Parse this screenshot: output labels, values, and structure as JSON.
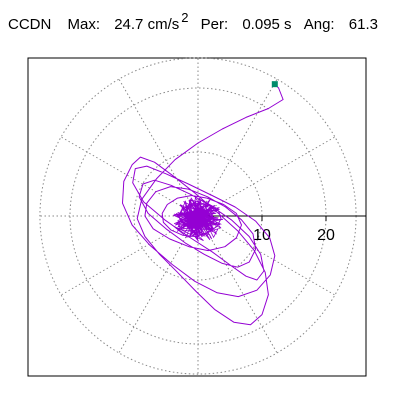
{
  "header": {
    "station": "CCDN",
    "max_label": "Max:",
    "max_value": "24.7",
    "max_unit": "cm/s",
    "max_unit_exp": "2",
    "per_label": "Per:",
    "per_value": "0.095 s",
    "ang_label": "Ang:",
    "ang_value": "61.3"
  },
  "chart_data": {
    "type": "line",
    "title": "",
    "xlabel": "",
    "ylabel": "",
    "xlim": [
      -26,
      26
    ],
    "ylim": [
      -26,
      26
    ],
    "grid": "polar",
    "polar_rings": [
      10,
      20
    ],
    "tick_labels": [
      "10",
      "20"
    ],
    "max_value": 24.7,
    "angle": 61.3,
    "colors": {
      "trace": "#9400d3",
      "marker": "#008b6b",
      "grid": "#888888",
      "axis": "#000000"
    },
    "series": [
      {
        "x": [
          12.0,
          12.6,
          13.3,
          11.0,
          7.5,
          3.8,
          0.0,
          -3.6,
          -6.5,
          -8.8,
          -9.5,
          -8.3,
          -6.0,
          -3.2,
          -0.3,
          2.6,
          5.6,
          8.2,
          10.0,
          11.0,
          10.5,
          8.8,
          6.3,
          3.0,
          -0.5,
          -3.8,
          -6.8,
          -9.0,
          -10.3,
          -11.6,
          -11.8,
          -10.3,
          -7.5,
          -4.0,
          -0.5,
          3.0,
          6.3,
          9.2,
          11.3,
          12.0,
          11.2,
          9.0,
          5.8,
          2.2,
          -1.5,
          -5.0,
          -8.0,
          -9.8,
          -10.2,
          -8.5,
          -5.2,
          -1.5,
          2.2,
          5.2,
          7.5,
          9.2,
          10.3,
          9.8,
          8.0,
          5.2,
          2.0,
          -1.2,
          -4.2,
          -6.8,
          -8.6,
          -9.2,
          -7.8,
          -5.0,
          -2.0,
          1.0,
          3.8,
          6.2,
          8.0,
          9.0,
          8.6,
          6.8,
          4.3,
          1.5,
          -1.5,
          -4.3,
          -6.6,
          -8.0,
          -8.3,
          -7.0,
          -4.4,
          -1.4,
          1.6,
          4.2,
          6.0,
          6.8,
          6.0,
          4.0,
          1.4,
          -1.0,
          -3.2,
          -4.8,
          -5.6,
          -5.4,
          -4.2,
          -2.4,
          -0.4,
          1.6,
          3.0,
          3.6,
          3.2,
          2.0,
          0.4,
          -1.2,
          -2.4,
          -3.0,
          -2.6,
          -1.6,
          -0.4,
          0.8,
          1.6,
          1.8,
          1.2,
          0.2,
          -0.8,
          -1.4,
          -1.2,
          -0.4,
          0.4,
          0.8,
          0.4,
          -0.2,
          -0.6,
          -0.2,
          0.3,
          0.1
        ],
        "y": [
          20.6,
          20.0,
          18.2,
          16.8,
          15.4,
          13.6,
          11.4,
          8.8,
          5.8,
          2.6,
          -0.4,
          -3.2,
          -6.0,
          -8.8,
          -11.8,
          -14.6,
          -16.6,
          -17.0,
          -15.4,
          -12.3,
          -8.8,
          -5.4,
          -2.4,
          0.6,
          3.6,
          6.2,
          8.4,
          9.2,
          8.0,
          5.4,
          2.0,
          -1.4,
          -4.6,
          -7.6,
          -10.2,
          -12.0,
          -12.6,
          -11.6,
          -9.2,
          -6.2,
          -3.4,
          -0.8,
          1.4,
          3.2,
          5.0,
          6.6,
          7.8,
          7.4,
          5.2,
          2.2,
          -0.6,
          -3.2,
          -5.6,
          -7.8,
          -9.4,
          -10.0,
          -8.6,
          -6.0,
          -3.2,
          -0.6,
          1.6,
          3.4,
          4.8,
          5.6,
          5.0,
          3.0,
          0.4,
          -2.0,
          -4.2,
          -6.0,
          -7.4,
          -8.0,
          -7.2,
          -5.2,
          -2.8,
          -0.6,
          1.4,
          3.0,
          4.2,
          4.6,
          3.8,
          2.0,
          0.0,
          -2.0,
          -3.6,
          -4.8,
          -5.4,
          -4.8,
          -3.4,
          -1.4,
          0.4,
          1.8,
          2.8,
          3.2,
          2.8,
          1.8,
          0.4,
          -1.0,
          -2.2,
          -3.0,
          -3.2,
          -2.6,
          -1.6,
          -0.4,
          0.8,
          1.6,
          2.0,
          1.8,
          1.0,
          0.0,
          -1.0,
          -1.6,
          -1.8,
          -1.4,
          -0.6,
          0.2,
          0.8,
          1.0,
          0.6,
          0.0,
          -0.6,
          -0.8,
          -0.5,
          0.0,
          0.4,
          0.4,
          0.0,
          -0.3,
          -0.2,
          0.1
        ]
      }
    ]
  }
}
